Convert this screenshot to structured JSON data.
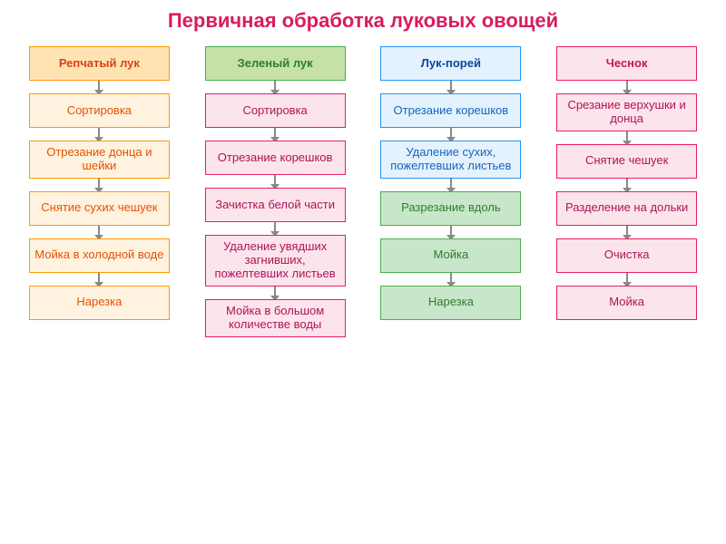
{
  "title": "Первичная обработка луковых овощей",
  "title_color": "#d81b60",
  "columns": [
    {
      "bg": "#fff3e0",
      "border": "#ff9800",
      "header_bg": "#ffe3b3",
      "header_color": "#d84315",
      "text_color": "#e65100",
      "header": "Репчатый лук",
      "steps": [
        "Сортировка",
        "Отрезание донца и шейки",
        "Снятие сухих чешуек",
        "Мойка в холодной воде",
        "Нарезка"
      ]
    },
    {
      "bg": "#fce4ec",
      "border": "#e91e63",
      "header_bg": "#c5e1a5",
      "header_border": "#4caf50",
      "header_color": "#2e7d32",
      "text_color": "#ad1457",
      "header": "Зеленый лук",
      "steps": [
        "Сортировка",
        "Отрезание корешков",
        "Зачистка белой части",
        "Удаление увядших загнивших, пожелтевших листьев",
        "Мойка в большом количестве воды"
      ]
    },
    {
      "bg": "#e3f2fd",
      "border": "#2196f3",
      "header_bg": "#e3f2fd",
      "header_color": "#0d47a1",
      "text_color": "#1565c0",
      "green_bg": "#c8e6c9",
      "green_border": "#4caf50",
      "green_text": "#2e7d32",
      "header": "Лук-порей",
      "steps": [
        "Отрезание корешков",
        "Удаление сухих, пожелтевших листьев",
        "Разрезание вдоль",
        "Мойка",
        "Нарезка"
      ]
    },
    {
      "bg": "#fce4ec",
      "border": "#e91e63",
      "header_bg": "#fce4ec",
      "header_color": "#c2185b",
      "text_color": "#ad1457",
      "header": "Чеснок",
      "steps": [
        "Срезание верхушки и донца",
        "Снятие чешуек",
        "Разделение на дольки",
        "Очистка",
        "Мойка"
      ]
    }
  ]
}
